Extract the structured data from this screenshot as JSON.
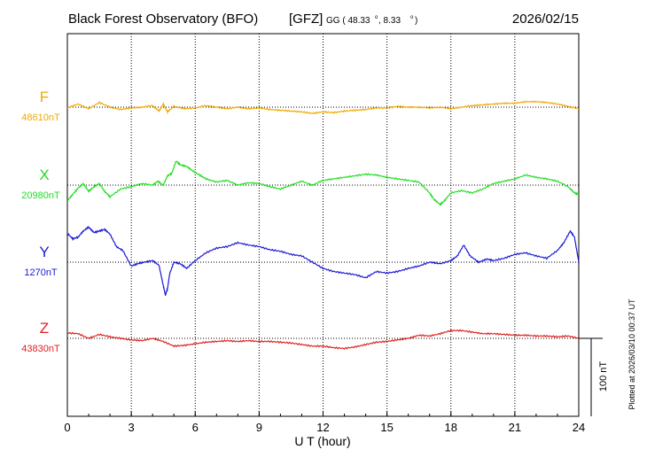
{
  "header": {
    "station": "Black Forest Observatory (BFO)",
    "institute": "[GFZ]",
    "coord_prefix": "GG ( 48.33",
    "coord_lat_deg": "o",
    "coord_mid": ",   8.33",
    "coord_lon_deg": "o",
    "coord_suffix": ")",
    "date": "2026/02/15"
  },
  "plotted_note": "Plotted at 2026/03/10 00:37 UT",
  "scale_bar_label": "100 nT",
  "chart_data": {
    "type": "line",
    "xlabel": "U T (hour)",
    "xlim": [
      0,
      24
    ],
    "xticks": [
      "0",
      "3",
      "6",
      "9",
      "12",
      "15",
      "18",
      "21",
      "24"
    ],
    "grid": true,
    "series": [
      {
        "name": "F",
        "baseline_label": "48610nT",
        "baseline": 48610,
        "color": "#f0a800",
        "x": [
          0,
          0.5,
          1,
          1.5,
          2,
          2.5,
          3,
          3.5,
          4,
          4.3,
          4.5,
          4.7,
          5,
          5.5,
          6,
          6.5,
          7,
          7.5,
          8,
          8.5,
          9,
          9.5,
          10,
          10.5,
          11,
          11.5,
          12,
          12.5,
          13,
          13.5,
          14,
          14.5,
          15,
          15.5,
          16,
          16.5,
          17,
          17.5,
          18,
          18.5,
          19,
          19.5,
          20,
          20.5,
          21,
          21.5,
          22,
          22.5,
          23,
          23.5,
          24
        ],
        "y": [
          48609,
          48614,
          48608,
          48616,
          48610,
          48607,
          48609,
          48610,
          48612,
          48605,
          48614,
          48604,
          48611,
          48608,
          48609,
          48612,
          48610,
          48608,
          48610,
          48608,
          48609,
          48607,
          48606,
          48605,
          48604,
          48602,
          48604,
          48603,
          48605,
          48606,
          48607,
          48609,
          48609,
          48611,
          48610,
          48610,
          48609,
          48610,
          48608,
          48610,
          48612,
          48613,
          48614,
          48615,
          48615,
          48617,
          48617,
          48616,
          48614,
          48611,
          48608
        ]
      },
      {
        "name": "X",
        "baseline_label": "20980nT",
        "baseline": 20980,
        "color": "#22dd22",
        "x": [
          0,
          0.25,
          0.5,
          0.75,
          1,
          1.25,
          1.5,
          1.75,
          2,
          2.5,
          3,
          3.5,
          4,
          4.25,
          4.5,
          4.7,
          4.9,
          5.1,
          5.3,
          5.6,
          5.9,
          6.2,
          6.5,
          7,
          7.5,
          8,
          8.5,
          9,
          9.5,
          10,
          10.5,
          11,
          11.5,
          12,
          12.5,
          13,
          13.5,
          14,
          14.5,
          15,
          15.5,
          16,
          16.5,
          17,
          17.2,
          17.5,
          17.7,
          18,
          18.5,
          19,
          19.5,
          20,
          20.5,
          21,
          21.5,
          22,
          22.5,
          23,
          23.5,
          23.8,
          24
        ],
        "y": [
          20960,
          20968,
          20976,
          20982,
          20972,
          20978,
          20982,
          20972,
          20965,
          20975,
          20978,
          20982,
          20980,
          20985,
          20980,
          20992,
          20995,
          21011,
          21006,
          21004,
          20998,
          20993,
          20988,
          20984,
          20986,
          20980,
          20983,
          20982,
          20978,
          20975,
          20980,
          20985,
          20980,
          20986,
          20988,
          20990,
          20992,
          20994,
          20993,
          20990,
          20988,
          20986,
          20984,
          20970,
          20962,
          20955,
          20960,
          20970,
          20973,
          20970,
          20975,
          20982,
          20985,
          20988,
          20993,
          20990,
          20988,
          20985,
          20978,
          20970,
          20968
        ]
      },
      {
        "name": "Y",
        "baseline_label": "1270nT",
        "baseline": 1270,
        "color": "#1a1ad6",
        "x": [
          0,
          0.25,
          0.5,
          0.75,
          1,
          1.25,
          1.5,
          1.75,
          2,
          2.3,
          2.6,
          3,
          3.3,
          3.6,
          4,
          4.3,
          4.5,
          4.6,
          4.7,
          4.8,
          5,
          5.3,
          5.6,
          6,
          6.5,
          7,
          7.5,
          8,
          8.5,
          9,
          9.5,
          10,
          10.5,
          11,
          11.5,
          12,
          12.5,
          13,
          13.5,
          14,
          14.5,
          15,
          15.5,
          16,
          16.5,
          17,
          17.5,
          18,
          18.3,
          18.6,
          18.9,
          19.3,
          19.7,
          20,
          20.5,
          21,
          21.5,
          22,
          22.5,
          23,
          23.3,
          23.6,
          23.8,
          24
        ],
        "y": [
          1307,
          1300,
          1302,
          1310,
          1315,
          1308,
          1310,
          1312,
          1306,
          1290,
          1285,
          1265,
          1268,
          1270,
          1272,
          1266,
          1240,
          1228,
          1236,
          1255,
          1270,
          1268,
          1262,
          1272,
          1282,
          1288,
          1290,
          1295,
          1292,
          1290,
          1286,
          1284,
          1280,
          1278,
          1270,
          1262,
          1258,
          1256,
          1254,
          1250,
          1258,
          1256,
          1258,
          1262,
          1265,
          1270,
          1268,
          1272,
          1278,
          1292,
          1278,
          1270,
          1274,
          1272,
          1275,
          1280,
          1282,
          1278,
          1275,
          1285,
          1295,
          1310,
          1302,
          1270
        ]
      },
      {
        "name": "Z",
        "baseline_label": "43830nT",
        "baseline": 43830,
        "color": "#e02020",
        "x": [
          0,
          0.5,
          1,
          1.5,
          2,
          2.5,
          3,
          3.5,
          4,
          4.5,
          5,
          5.5,
          6,
          6.5,
          7,
          7.5,
          8,
          8.5,
          9,
          9.5,
          10,
          10.5,
          11,
          11.5,
          12,
          12.5,
          13,
          13.5,
          14,
          14.5,
          15,
          15.5,
          16,
          16.5,
          17,
          17.5,
          18,
          18.5,
          19,
          19.5,
          20,
          20.5,
          21,
          21.5,
          22,
          22.5,
          23,
          23.5,
          24
        ],
        "y": [
          43837,
          43836,
          43830,
          43835,
          43832,
          43830,
          43828,
          43827,
          43830,
          43826,
          43820,
          43821,
          43823,
          43825,
          43826,
          43827,
          43826,
          43827,
          43826,
          43826,
          43825,
          43824,
          43822,
          43820,
          43820,
          43818,
          43817,
          43819,
          43822,
          43825,
          43826,
          43828,
          43830,
          43834,
          43833,
          43836,
          43840,
          43840,
          43838,
          43836,
          43836,
          43835,
          43834,
          43834,
          43833,
          43833,
          43832,
          43833,
          43830
        ]
      }
    ]
  }
}
